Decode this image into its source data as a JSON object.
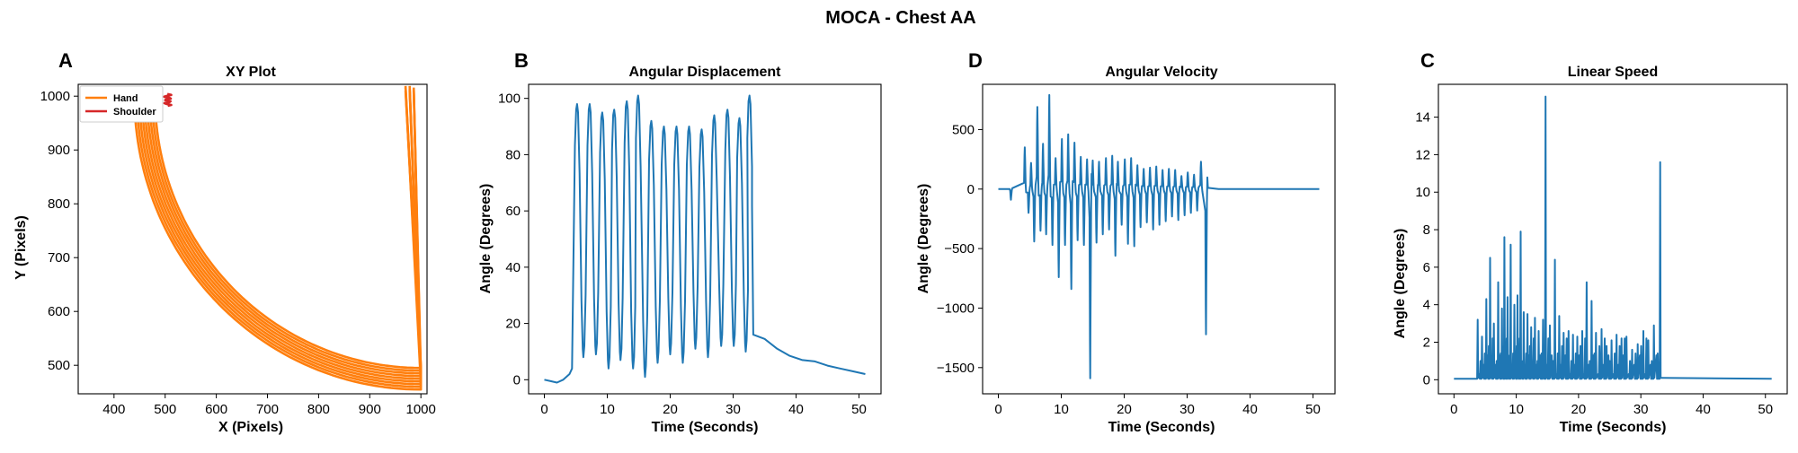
{
  "figure": {
    "title": "MOCA - Chest AA"
  },
  "chart_data": [
    {
      "type": "line",
      "panel_label": "A",
      "title": "XY Plot",
      "xlabel": "X (Pixels)",
      "ylabel": "Y (Pixels)",
      "xlim": [
        330,
        1012
      ],
      "ylim": [
        447,
        1022
      ],
      "xticks": [
        400,
        500,
        600,
        700,
        800,
        900,
        1000
      ],
      "yticks": [
        500,
        600,
        700,
        800,
        900,
        1000
      ],
      "grid": false,
      "legend": {
        "position": "top-left",
        "entries": [
          {
            "name": "Hand",
            "color": "#ff7f0e"
          },
          {
            "name": "Shoulder",
            "color": "#d62728"
          }
        ]
      },
      "series": [
        {
          "name": "Hand",
          "color": "#ff7f0e",
          "style": "arc-band",
          "arc": {
            "cx": 1000,
            "cy": 1000,
            "rx_inner": 520,
            "rx_outer": 560,
            "ry_inner": 505,
            "ry_outer": 545,
            "passes": 9
          },
          "tail_x_range": [
            440,
            510
          ]
        },
        {
          "name": "Shoulder",
          "color": "#d62728",
          "style": "cluster",
          "x_range": [
            498,
            512
          ],
          "y_range": [
            982,
            1004
          ]
        }
      ]
    },
    {
      "type": "line",
      "panel_label": "B",
      "title": "Angular Displacement",
      "xlabel": "Time (Seconds)",
      "ylabel": "Angle (Degrees)",
      "xlim": [
        -2.5,
        53.5
      ],
      "ylim": [
        -5,
        105
      ],
      "xticks": [
        0,
        10,
        20,
        30,
        40,
        50
      ],
      "yticks": [
        0,
        20,
        40,
        60,
        80,
        100
      ],
      "grid": false,
      "series": [
        {
          "color": "#1f77b4",
          "baseline": [
            [
              0,
              0
            ],
            [
              1,
              -0.5
            ],
            [
              2,
              -1
            ],
            [
              3,
              0
            ],
            [
              4,
              2
            ],
            [
              4.4,
              4
            ]
          ],
          "peaks_t": [
            5.2,
            7.2,
            9.2,
            11.1,
            13.1,
            14.9,
            17.0,
            19.0,
            21.0,
            23.0,
            25.0,
            27.0,
            29.1,
            31.0,
            32.6
          ],
          "peaks_v": [
            98,
            98,
            95,
            96,
            99,
            101,
            92,
            90,
            90,
            90,
            89,
            94,
            96,
            93,
            101
          ],
          "troughs_t": [
            6.2,
            8.2,
            10.2,
            12.1,
            14.1,
            16.0,
            18.0,
            20.0,
            22.0,
            24.0,
            26.0,
            28.1,
            30.1,
            32.0
          ],
          "troughs_v": [
            8,
            9,
            4,
            7,
            4,
            1,
            6,
            9,
            6,
            11,
            8,
            12,
            12,
            10
          ],
          "tail": [
            [
              33.0,
              62
            ],
            [
              33.2,
              16
            ],
            [
              35,
              14.5
            ],
            [
              37,
              11
            ],
            [
              39,
              8.5
            ],
            [
              41,
              7
            ],
            [
              43,
              6.5
            ],
            [
              45,
              5
            ],
            [
              47,
              4
            ],
            [
              49,
              3
            ],
            [
              51,
              2
            ]
          ]
        }
      ]
    },
    {
      "type": "line",
      "panel_label": "D",
      "title": "Angular Velocity",
      "xlabel": "Time (Seconds)",
      "ylabel": "Angle (Degrees)",
      "xlim": [
        -2.5,
        53.5
      ],
      "ylim": [
        -1720,
        880
      ],
      "xticks": [
        0,
        10,
        20,
        30,
        40,
        50
      ],
      "yticks": [
        500,
        0,
        -500,
        -1000,
        -1500
      ],
      "grid": false,
      "series": [
        {
          "color": "#1f77b4",
          "pos_spikes": [
            [
              4.2,
              350
            ],
            [
              5.2,
              220
            ],
            [
              6.2,
              690
            ],
            [
              7.1,
              380
            ],
            [
              8.1,
              790
            ],
            [
              9.1,
              260
            ],
            [
              10.1,
              420
            ],
            [
              11.1,
              460
            ],
            [
              12.1,
              390
            ],
            [
              13.1,
              270
            ],
            [
              14.1,
              250
            ],
            [
              15.0,
              240
            ],
            [
              16.0,
              230
            ],
            [
              17.1,
              260
            ],
            [
              18.1,
              280
            ],
            [
              19.0,
              230
            ],
            [
              20.1,
              250
            ],
            [
              21.1,
              260
            ],
            [
              22.1,
              200
            ],
            [
              23.1,
              170
            ],
            [
              24.1,
              180
            ],
            [
              25.1,
              190
            ],
            [
              26.1,
              160
            ],
            [
              27.1,
              170
            ],
            [
              28.1,
              160
            ],
            [
              29.1,
              110
            ],
            [
              30.1,
              140
            ],
            [
              31.1,
              120
            ],
            [
              32.2,
              230
            ]
          ],
          "neg_spikes": [
            [
              2.0,
              -90
            ],
            [
              4.8,
              -200
            ],
            [
              5.7,
              -440
            ],
            [
              6.7,
              -350
            ],
            [
              7.6,
              -380
            ],
            [
              8.6,
              -470
            ],
            [
              9.6,
              -740
            ],
            [
              10.6,
              -470
            ],
            [
              11.6,
              -840
            ],
            [
              12.6,
              -430
            ],
            [
              13.6,
              -470
            ],
            [
              14.6,
              -1590
            ],
            [
              15.6,
              -450
            ],
            [
              16.6,
              -380
            ],
            [
              17.6,
              -340
            ],
            [
              18.6,
              -560
            ],
            [
              19.6,
              -300
            ],
            [
              20.6,
              -460
            ],
            [
              21.6,
              -480
            ],
            [
              22.6,
              -320
            ],
            [
              23.6,
              -280
            ],
            [
              24.6,
              -340
            ],
            [
              25.6,
              -300
            ],
            [
              26.6,
              -270
            ],
            [
              27.6,
              -230
            ],
            [
              28.6,
              -260
            ],
            [
              29.6,
              -220
            ],
            [
              30.6,
              -200
            ],
            [
              31.6,
              -180
            ],
            [
              33.0,
              -1220
            ]
          ],
          "tail_end": 51
        }
      ]
    },
    {
      "type": "line",
      "panel_label": "C",
      "title": "Linear Speed",
      "xlabel": "Time (Seconds)",
      "ylabel": "Angle (Degrees)",
      "xlim": [
        -2.5,
        53.5
      ],
      "ylim": [
        -0.75,
        15.75
      ],
      "xticks": [
        0,
        10,
        20,
        30,
        40,
        50
      ],
      "yticks": [
        0,
        2,
        4,
        6,
        8,
        10,
        12,
        14
      ],
      "grid": false,
      "series": [
        {
          "color": "#1f77b4",
          "spikes": [
            [
              3.8,
              3.2
            ],
            [
              4.5,
              2.3
            ],
            [
              5.2,
              4.3
            ],
            [
              5.8,
              6.5
            ],
            [
              6.4,
              3.0
            ],
            [
              7.1,
              5.2
            ],
            [
              7.7,
              3.8
            ],
            [
              8.1,
              7.6
            ],
            [
              8.6,
              4.4
            ],
            [
              9.1,
              7.2
            ],
            [
              9.7,
              4.0
            ],
            [
              10.2,
              4.5
            ],
            [
              10.7,
              7.9
            ],
            [
              11.2,
              3.6
            ],
            [
              11.8,
              3.5
            ],
            [
              12.4,
              2.8
            ],
            [
              13.0,
              3.3
            ],
            [
              13.6,
              2.6
            ],
            [
              14.3,
              3.2
            ],
            [
              14.7,
              15.1
            ],
            [
              15.4,
              2.9
            ],
            [
              16.2,
              6.4
            ],
            [
              16.9,
              3.4
            ],
            [
              17.6,
              2.5
            ],
            [
              18.4,
              2.6
            ],
            [
              19.1,
              2.4
            ],
            [
              19.8,
              2.3
            ],
            [
              20.6,
              2.6
            ],
            [
              21.3,
              5.2
            ],
            [
              22.1,
              4.2
            ],
            [
              22.8,
              2.5
            ],
            [
              23.7,
              2.7
            ],
            [
              24.5,
              1.8
            ],
            [
              25.3,
              2.1
            ],
            [
              26.1,
              2.4
            ],
            [
              26.9,
              2.2
            ],
            [
              27.7,
              2.3
            ],
            [
              28.6,
              1.6
            ],
            [
              29.5,
              1.9
            ],
            [
              30.4,
              2.6
            ],
            [
              31.2,
              2.1
            ],
            [
              32.1,
              2.9
            ],
            [
              33.1,
              11.6
            ]
          ],
          "baseline": 0.05,
          "tail_end": 51
        }
      ]
    }
  ]
}
